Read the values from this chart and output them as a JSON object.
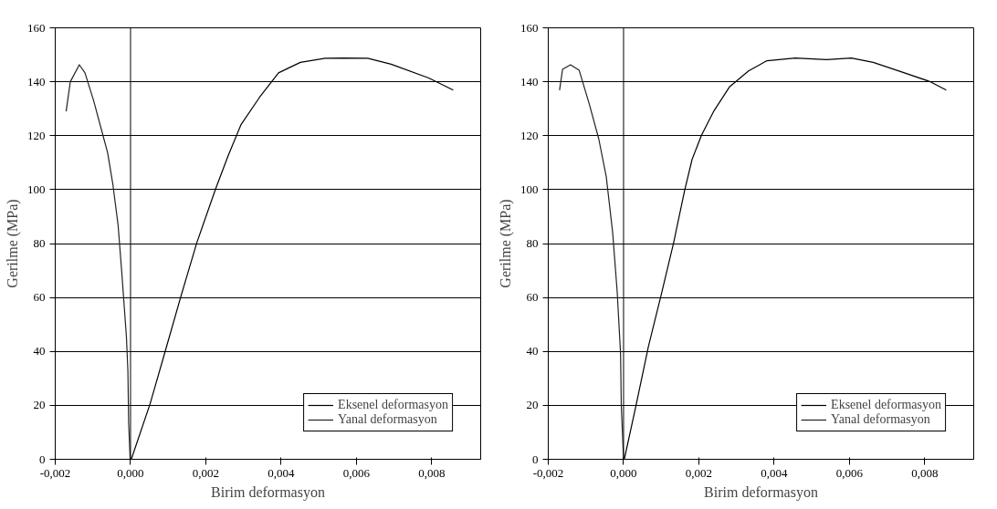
{
  "chart_data": [
    {
      "type": "line",
      "xlabel": "Birim deformasyon",
      "ylabel": "Gerilme (MPa)",
      "xlim": [
        -0.002,
        0.0093
      ],
      "ylim": [
        0,
        160
      ],
      "xticks": [
        {
          "value": -0.002,
          "label": "-0,002"
        },
        {
          "value": 0,
          "label": "0,000"
        },
        {
          "value": 0.002,
          "label": "0,002"
        },
        {
          "value": 0.004,
          "label": "0,004"
        },
        {
          "value": 0.006,
          "label": "0,006"
        },
        {
          "value": 0.008,
          "label": "0,008"
        }
      ],
      "yticks": [
        0,
        20,
        40,
        60,
        80,
        100,
        120,
        140,
        160
      ],
      "grid": "y",
      "legend": "bottom right",
      "marker": "none",
      "line_style": "solid",
      "ref_lines": [
        {
          "axis": "x",
          "value": 0,
          "label": null,
          "color": "#000000"
        }
      ],
      "series": [
        {
          "name": "Eksenel deformasyon",
          "color": "#000000",
          "x": [
            2e-05,
            0.00052,
            0.00093,
            0.00135,
            0.00176,
            0.00226,
            0.00259,
            0.00293,
            0.00343,
            0.00393,
            0.00451,
            0.00517,
            0.00567,
            0.0063,
            0.00692,
            0.00792,
            0.00857
          ],
          "values": [
            0,
            20.6,
            40.5,
            61,
            80.3,
            100.3,
            112.5,
            124,
            134.3,
            143.3,
            147.2,
            148.7,
            148.8,
            148.7,
            146.5,
            141.4,
            136.9
          ]
        },
        {
          "name": "Yanal deformasyon",
          "color": "#222222",
          "x": [
            -0.00171,
            -0.0016,
            -0.00136,
            -0.00121,
            -0.00098,
            -0.00073,
            -0.00061,
            -0.00047,
            -0.00033,
            -0.00023,
            -0.00011,
            -7e-05,
            -5e-05,
            -1e-05
          ],
          "values": [
            129,
            140,
            146.3,
            143.3,
            133,
            120,
            113.8,
            102,
            86.8,
            68.8,
            45.6,
            32.8,
            13.5,
            0
          ]
        }
      ]
    },
    {
      "type": "line",
      "xlabel": "Birim deformasyon",
      "ylabel": "Gerilme (MPa)",
      "xlim": [
        -0.002,
        0.0093
      ],
      "ylim": [
        0,
        160
      ],
      "xticks": [
        {
          "value": -0.002,
          "label": "-0,002"
        },
        {
          "value": 0,
          "label": "0,000"
        },
        {
          "value": 0.002,
          "label": "0,002"
        },
        {
          "value": 0.004,
          "label": "0,004"
        },
        {
          "value": 0.006,
          "label": "0,006"
        },
        {
          "value": 0.008,
          "label": "0,008"
        }
      ],
      "yticks": [
        0,
        20,
        40,
        60,
        80,
        100,
        120,
        140,
        160
      ],
      "grid": "y",
      "legend": "bottom right",
      "marker": "none",
      "line_style": "solid",
      "ref_lines": [
        {
          "axis": "x",
          "value": 0,
          "label": null,
          "color": "#000000"
        }
      ],
      "series": [
        {
          "name": "Eksenel deformasyon",
          "color": "#000000",
          "x": [
            2e-05,
            0.00033,
            0.00066,
            0.001,
            0.00133,
            0.00162,
            0.00182,
            0.00207,
            0.0024,
            0.00282,
            0.00332,
            0.00381,
            0.00456,
            0.00539,
            0.00605,
            0.00663,
            0.00746,
            0.00813,
            0.00857
          ],
          "values": [
            0,
            19.9,
            41.8,
            61,
            80.3,
            99.6,
            111.2,
            120.2,
            129.2,
            138.2,
            144,
            147.8,
            148.8,
            148.2,
            148.8,
            147.2,
            143.3,
            140.1,
            136.9
          ]
        },
        {
          "name": "Yanal deformasyon",
          "color": "#222222",
          "x": [
            -0.0017,
            -0.00162,
            -0.00141,
            -0.00118,
            -0.00091,
            -0.00066,
            -0.00046,
            -0.00029,
            -0.00017,
            -8e-05,
            -6e-05,
            0
          ],
          "values": [
            136.9,
            144.6,
            146.3,
            144.3,
            131.7,
            118.9,
            104.8,
            84.2,
            62.3,
            39.2,
            19.9,
            0
          ]
        }
      ]
    }
  ]
}
